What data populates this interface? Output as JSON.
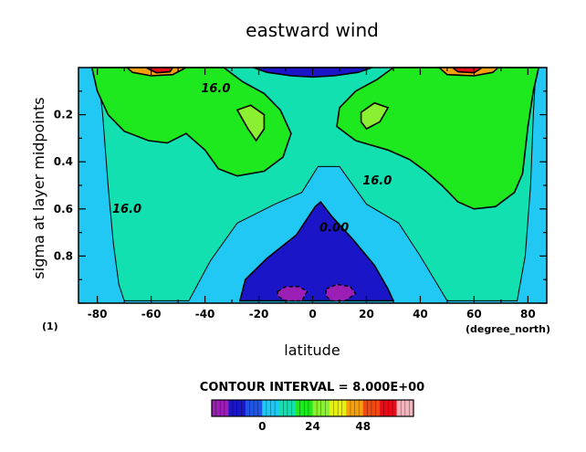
{
  "chart_data": {
    "type": "heatmap",
    "title": "eastward wind",
    "xlabel": "latitude",
    "ylabel": "sigma at layer midpoints",
    "x_units": "(degree_north)",
    "frame_label": "(1)",
    "xlim": [
      -87,
      87
    ],
    "ylim": [
      1.0,
      0.0
    ],
    "x_ticks": [
      -80,
      -60,
      -40,
      -20,
      0,
      20,
      40,
      60,
      80
    ],
    "x_tick_labels": [
      "-80",
      "-60",
      "-40",
      "-20",
      "0",
      "20",
      "40",
      "60",
      "80"
    ],
    "y_ticks": [
      0.2,
      0.4,
      0.6,
      0.8
    ],
    "y_tick_labels": [
      "0.2",
      "0.4",
      "0.6",
      "0.8"
    ],
    "contour_interval_label": "CONTOUR INTERVAL = 8.000E+00",
    "contour_labels": [
      {
        "text": "16.0",
        "lat": -36,
        "sigma": 0.09
      },
      {
        "text": "16.0",
        "lat": -69,
        "sigma": 0.6
      },
      {
        "text": "16.0",
        "lat": 24,
        "sigma": 0.48
      },
      {
        "text": "0.00",
        "lat": 8,
        "sigma": 0.68
      }
    ],
    "colorbar": {
      "levels": [
        -16,
        -8,
        0,
        8,
        16,
        24,
        32,
        40,
        48,
        56,
        64
      ],
      "tick_values": [
        0,
        24,
        48
      ],
      "tick_labels": [
        "0",
        "24",
        "48"
      ],
      "colors": [
        "#9b1fb4",
        "#1a16c8",
        "#1f55e6",
        "#21c8f4",
        "#12e0b0",
        "#1ee81e",
        "#8cf032",
        "#e8f010",
        "#f5a00c",
        "#f04a12",
        "#e80c1a",
        "#f3b4be"
      ]
    },
    "regions": [
      {
        "name": "easterly-surface",
        "value_range": [
          -8,
          0
        ],
        "color": "#1a16c8",
        "boundary": [
          [
            -27,
            0.99
          ],
          [
            -25,
            0.9
          ],
          [
            -17,
            0.81
          ],
          [
            -6,
            0.71
          ],
          [
            1,
            0.59
          ],
          [
            3,
            0.57
          ],
          [
            7,
            0.63
          ],
          [
            15,
            0.73
          ],
          [
            23,
            0.84
          ],
          [
            28,
            0.94
          ],
          [
            30,
            0.99
          ]
        ]
      },
      {
        "name": "easterly-core-west",
        "value_range": [
          -16,
          -8
        ],
        "color": "#9b1fb4",
        "boundary": [
          [
            -13,
            0.95
          ],
          [
            -10,
            0.93
          ],
          [
            -5,
            0.93
          ],
          [
            -2,
            0.95
          ],
          [
            -4,
            0.99
          ],
          [
            -10,
            0.99
          ],
          [
            -13,
            0.97
          ]
        ]
      },
      {
        "name": "easterly-core-east",
        "value_range": [
          -16,
          -8
        ],
        "color": "#9b1fb4",
        "boundary": [
          [
            5,
            0.94
          ],
          [
            9,
            0.92
          ],
          [
            14,
            0.93
          ],
          [
            16,
            0.96
          ],
          [
            12,
            0.99
          ],
          [
            7,
            0.99
          ],
          [
            5,
            0.97
          ]
        ]
      },
      {
        "name": "easterly-top",
        "value_range": [
          -8,
          0
        ],
        "color": "#1a16c8",
        "boundary": [
          [
            -22,
            0.0
          ],
          [
            -17,
            0.02
          ],
          [
            -8,
            0.035
          ],
          [
            0,
            0.04
          ],
          [
            8,
            0.035
          ],
          [
            17,
            0.02
          ],
          [
            22,
            0.0
          ]
        ]
      },
      {
        "name": "green-west",
        "value_range": [
          16,
          32
        ],
        "color": "#1ee81e",
        "boundary": [
          [
            -82,
            0.0
          ],
          [
            -80,
            0.1
          ],
          [
            -76,
            0.2
          ],
          [
            -70,
            0.27
          ],
          [
            -61,
            0.31
          ],
          [
            -54,
            0.32
          ],
          [
            -47,
            0.28
          ],
          [
            -40,
            0.35
          ],
          [
            -35,
            0.43
          ],
          [
            -28,
            0.46
          ],
          [
            -18,
            0.44
          ],
          [
            -11,
            0.38
          ],
          [
            -8,
            0.28
          ],
          [
            -12,
            0.18
          ],
          [
            -18,
            0.11
          ],
          [
            -26,
            0.06
          ],
          [
            -33,
            0.0
          ]
        ]
      },
      {
        "name": "green-east",
        "value_range": [
          16,
          32
        ],
        "color": "#1ee81e",
        "boundary": [
          [
            84,
            0.0
          ],
          [
            82,
            0.1
          ],
          [
            80,
            0.25
          ],
          [
            78,
            0.45
          ],
          [
            75,
            0.53
          ],
          [
            68,
            0.59
          ],
          [
            60,
            0.6
          ],
          [
            54,
            0.57
          ],
          [
            48,
            0.5
          ],
          [
            42,
            0.44
          ],
          [
            36,
            0.39
          ],
          [
            28,
            0.35
          ],
          [
            16,
            0.31
          ],
          [
            9,
            0.25
          ],
          [
            10,
            0.17
          ],
          [
            16,
            0.1
          ],
          [
            24,
            0.05
          ],
          [
            30,
            0.0
          ]
        ]
      },
      {
        "name": "jet-core-west",
        "value_range": [
          32,
          40
        ],
        "color": "#8cf032",
        "boundary": [
          [
            -28,
            0.18
          ],
          [
            -24,
            0.26
          ],
          [
            -21,
            0.31
          ],
          [
            -18,
            0.26
          ],
          [
            -18,
            0.2
          ],
          [
            -23,
            0.16
          ]
        ]
      },
      {
        "name": "jet-core-east",
        "value_range": [
          32,
          40
        ],
        "color": "#8cf032",
        "boundary": [
          [
            18,
            0.19
          ],
          [
            23,
            0.15
          ],
          [
            28,
            0.17
          ],
          [
            25,
            0.23
          ],
          [
            20,
            0.26
          ],
          [
            18,
            0.23
          ]
        ]
      },
      {
        "name": "jet-top-west-48",
        "value_range": [
          48,
          56
        ],
        "color": "#f5a00c",
        "boundary": [
          [
            -69,
            0.0
          ],
          [
            -67,
            0.02
          ],
          [
            -60,
            0.035
          ],
          [
            -52,
            0.03
          ],
          [
            -47,
            0.0
          ]
        ]
      },
      {
        "name": "jet-top-west-56",
        "value_range": [
          56,
          64
        ],
        "color": "#e80c1a",
        "boundary": [
          [
            -62,
            0.0
          ],
          [
            -58,
            0.022
          ],
          [
            -53,
            0.018
          ],
          [
            -52,
            0.0
          ]
        ]
      },
      {
        "name": "jet-top-east-48",
        "value_range": [
          48,
          56
        ],
        "color": "#f5a00c",
        "boundary": [
          [
            47,
            0.0
          ],
          [
            50,
            0.03
          ],
          [
            60,
            0.035
          ],
          [
            67,
            0.02
          ],
          [
            69,
            0.0
          ]
        ]
      },
      {
        "name": "jet-top-east-56",
        "value_range": [
          56,
          64
        ],
        "color": "#e80c1a",
        "boundary": [
          [
            52,
            0.0
          ],
          [
            54,
            0.018
          ],
          [
            60,
            0.022
          ],
          [
            63,
            0.0
          ]
        ]
      }
    ]
  }
}
